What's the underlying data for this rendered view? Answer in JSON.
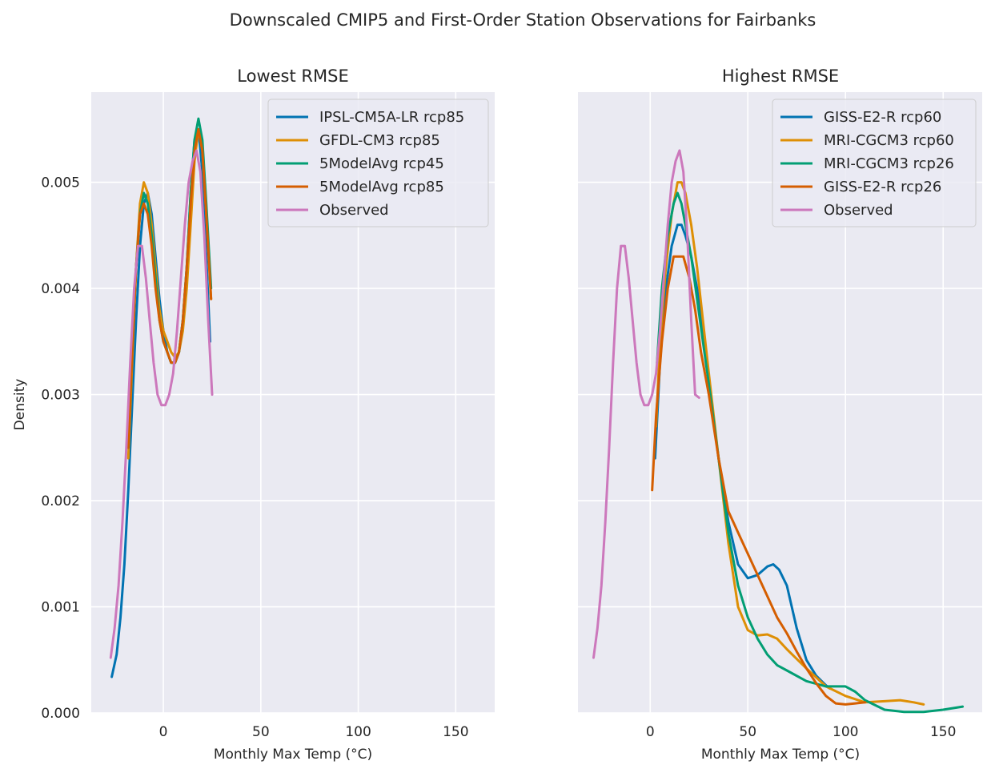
{
  "figure": {
    "title": "Downscaled CMIP5 and First-Order Station Observations for Fairbanks"
  },
  "chart_data": [
    {
      "type": "line",
      "title": "Lowest RMSE",
      "xlabel": "Monthly Max Temp (°C)",
      "ylabel": "Density",
      "xlim": [
        -37,
        170
      ],
      "ylim": [
        0,
        0.00585
      ],
      "xticks": [
        0,
        50,
        100,
        150
      ],
      "xtick_labels": [
        "0",
        "50",
        "100",
        "150"
      ],
      "yticks": [
        0,
        0.001,
        0.002,
        0.003,
        0.004,
        0.005
      ],
      "ytick_labels": [
        "0.000",
        "0.001",
        "0.002",
        "0.003",
        "0.004",
        "0.005"
      ],
      "grid": true,
      "legend_position": "top-right",
      "series": [
        {
          "name": "IPSL-CM5A-LR rcp85",
          "color": "#0173b2",
          "x": [
            -26.5,
            -24,
            -22,
            -20,
            -18,
            -16,
            -14,
            -12,
            -10,
            -8,
            -6,
            -4,
            -2,
            0,
            2,
            4,
            6,
            8,
            10,
            12,
            14,
            16,
            18,
            20,
            22,
            24
          ],
          "y": [
            0.00034,
            0.00055,
            0.0009,
            0.0014,
            0.0021,
            0.0029,
            0.0037,
            0.0044,
            0.0048,
            0.0049,
            0.0047,
            0.0043,
            0.0039,
            0.0036,
            0.0034,
            0.0033,
            0.0033,
            0.0034,
            0.0037,
            0.0042,
            0.0049,
            0.0054,
            0.0055,
            0.0051,
            0.0043,
            0.0035
          ]
        },
        {
          "name": "GFDL-CM3 rcp85",
          "color": "#de8f05",
          "x": [
            -18,
            -16,
            -14,
            -12,
            -10,
            -8,
            -6,
            -4,
            -2,
            0,
            2,
            4,
            6,
            8,
            10,
            12,
            14,
            16,
            18,
            20,
            22,
            24.5
          ],
          "y": [
            0.0024,
            0.0033,
            0.0042,
            0.0048,
            0.005,
            0.0049,
            0.0046,
            0.0042,
            0.0038,
            0.0036,
            0.0035,
            0.0034,
            0.00335,
            0.0034,
            0.0036,
            0.004,
            0.0046,
            0.0052,
            0.0055,
            0.0053,
            0.0047,
            0.0039
          ]
        },
        {
          "name": "5ModelAvg rcp45",
          "color": "#029e73",
          "x": [
            -18,
            -16,
            -14,
            -12,
            -10,
            -8,
            -6,
            -4,
            -2,
            0,
            2,
            4,
            6,
            8,
            10,
            12,
            14,
            16,
            18,
            20,
            22,
            24.5
          ],
          "y": [
            0.0025,
            0.0034,
            0.0042,
            0.0047,
            0.0049,
            0.0048,
            0.0045,
            0.0041,
            0.0037,
            0.0035,
            0.0034,
            0.0033,
            0.0033,
            0.0034,
            0.0037,
            0.0042,
            0.0049,
            0.0054,
            0.0056,
            0.0054,
            0.0048,
            0.004
          ]
        },
        {
          "name": "5ModelAvg rcp85",
          "color": "#d55e00",
          "x": [
            -18,
            -16,
            -14,
            -12,
            -10,
            -8,
            -6,
            -4,
            -2,
            0,
            2,
            4,
            6,
            8,
            10,
            12,
            14,
            16,
            18,
            20,
            22,
            24.5
          ],
          "y": [
            0.0025,
            0.0034,
            0.0042,
            0.0047,
            0.0048,
            0.0047,
            0.0044,
            0.004,
            0.0037,
            0.0035,
            0.0034,
            0.0033,
            0.0033,
            0.0034,
            0.0037,
            0.0042,
            0.0048,
            0.0053,
            0.0055,
            0.0053,
            0.0047,
            0.0039
          ]
        },
        {
          "name": "Observed",
          "color": "#cc78bc",
          "x": [
            -27,
            -25,
            -23,
            -21,
            -19,
            -17,
            -15,
            -13,
            -11,
            -9,
            -7,
            -5,
            -3,
            -1,
            1,
            3,
            5,
            7,
            9,
            11,
            13,
            15,
            17,
            19,
            21,
            23,
            25
          ],
          "y": [
            0.00052,
            0.0008,
            0.0012,
            0.0018,
            0.0025,
            0.0033,
            0.004,
            0.0044,
            0.0044,
            0.0041,
            0.0037,
            0.0033,
            0.003,
            0.0029,
            0.0029,
            0.003,
            0.0032,
            0.0036,
            0.0041,
            0.0046,
            0.005,
            0.0052,
            0.0053,
            0.0051,
            0.0045,
            0.0037,
            0.003
          ]
        }
      ]
    },
    {
      "type": "line",
      "title": "Highest RMSE",
      "xlabel": "Monthly Max Temp (°C)",
      "ylabel": "",
      "xlim": [
        -37,
        170
      ],
      "ylim": [
        0,
        0.00585
      ],
      "xticks": [
        0,
        50,
        100,
        150
      ],
      "xtick_labels": [
        "0",
        "50",
        "100",
        "150"
      ],
      "grid": true,
      "legend_position": "top-right",
      "series": [
        {
          "name": "GISS-E2-R rcp60",
          "color": "#0173b2",
          "x": [
            2.5,
            5,
            8,
            11,
            14,
            16,
            18,
            21,
            24,
            27,
            30,
            35,
            40,
            45,
            50,
            55,
            60,
            63,
            66,
            70,
            75,
            80,
            85,
            90,
            92
          ],
          "y": [
            0.0024,
            0.0033,
            0.004,
            0.0044,
            0.0046,
            0.0046,
            0.0045,
            0.0043,
            0.004,
            0.0036,
            0.0031,
            0.0024,
            0.0018,
            0.0014,
            0.00127,
            0.0013,
            0.00138,
            0.0014,
            0.00135,
            0.0012,
            0.0008,
            0.0005,
            0.00035,
            0.00026,
            0.00023
          ]
        },
        {
          "name": "MRI-CGCM3 rcp60",
          "color": "#de8f05",
          "x": [
            3,
            5,
            8,
            11,
            14,
            16,
            18,
            21,
            24,
            27,
            30,
            35,
            40,
            45,
            50,
            55,
            60,
            65,
            70,
            80,
            90,
            100,
            110,
            120,
            128,
            135,
            140
          ],
          "y": [
            0.0027,
            0.0035,
            0.0042,
            0.0047,
            0.005,
            0.005,
            0.0049,
            0.0046,
            0.0042,
            0.0037,
            0.0032,
            0.0024,
            0.0016,
            0.001,
            0.00078,
            0.00073,
            0.00074,
            0.0007,
            0.0006,
            0.00042,
            0.00025,
            0.00016,
            0.0001,
            0.00011,
            0.00012,
            0.0001,
            8e-05
          ]
        },
        {
          "name": "MRI-CGCM3 rcp26",
          "color": "#029e73",
          "x": [
            3.5,
            6,
            9,
            12,
            14,
            16,
            18,
            21,
            24,
            27,
            30,
            35,
            40,
            45,
            50,
            55,
            60,
            65,
            70,
            80,
            90,
            100,
            105,
            110,
            120,
            130,
            140,
            150,
            160
          ],
          "y": [
            0.0033,
            0.004,
            0.0045,
            0.0048,
            0.0049,
            0.0048,
            0.0046,
            0.0043,
            0.0039,
            0.0035,
            0.0031,
            0.0024,
            0.0017,
            0.0012,
            0.0009,
            0.0007,
            0.00055,
            0.00045,
            0.0004,
            0.0003,
            0.00025,
            0.00025,
            0.0002,
            0.00012,
            3e-05,
            1e-05,
            1e-05,
            3e-05,
            6e-05
          ]
        },
        {
          "name": "GISS-E2-R rcp26",
          "color": "#d55e00",
          "x": [
            1,
            3,
            6,
            9,
            12,
            15,
            17,
            20,
            23,
            26,
            30,
            35,
            40,
            45,
            50,
            55,
            60,
            65,
            70,
            75,
            80,
            85,
            90,
            95,
            100,
            105,
            110
          ],
          "y": [
            0.0021,
            0.0028,
            0.0035,
            0.004,
            0.0043,
            0.0043,
            0.0043,
            0.0041,
            0.0038,
            0.0034,
            0.003,
            0.0024,
            0.0019,
            0.0017,
            0.0015,
            0.0013,
            0.0011,
            0.0009,
            0.00075,
            0.00058,
            0.00042,
            0.00028,
            0.00016,
            9e-05,
            8e-05,
            9e-05,
            0.0001
          ]
        },
        {
          "name": "Observed",
          "color": "#cc78bc",
          "x": [
            -29,
            -27,
            -25,
            -23,
            -21,
            -19,
            -17,
            -15,
            -13,
            -11,
            -9,
            -7,
            -5,
            -3,
            -1,
            1,
            3,
            5,
            7,
            9,
            11,
            13,
            15,
            17,
            19,
            21,
            23,
            25
          ],
          "y": [
            0.00052,
            0.0008,
            0.0012,
            0.0018,
            0.0025,
            0.0033,
            0.004,
            0.0044,
            0.0044,
            0.0041,
            0.0037,
            0.0033,
            0.003,
            0.0029,
            0.0029,
            0.003,
            0.0032,
            0.0036,
            0.0041,
            0.0046,
            0.005,
            0.0052,
            0.0053,
            0.0051,
            0.0045,
            0.0037,
            0.003,
            0.00297
          ]
        }
      ]
    }
  ]
}
